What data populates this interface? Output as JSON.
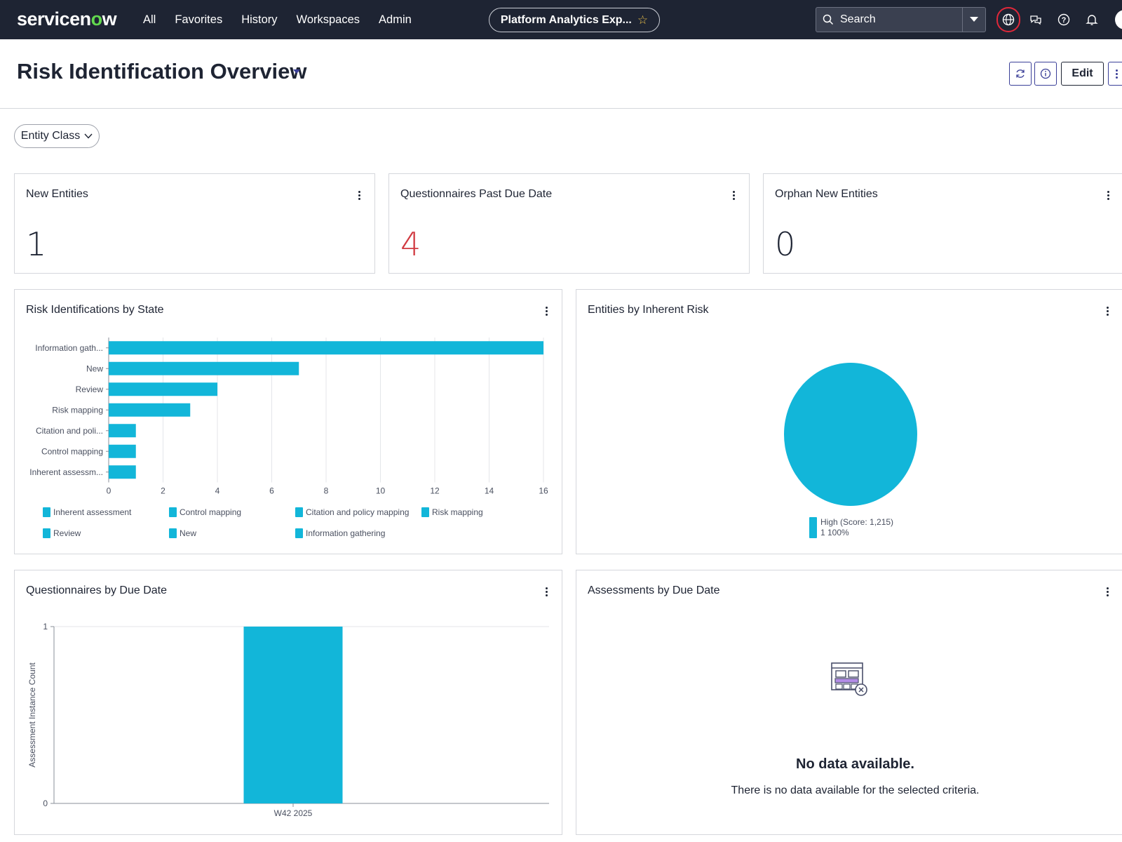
{
  "nav": {
    "logo": "servicenow",
    "links": [
      "All",
      "Favorites",
      "History",
      "Workspaces",
      "Admin"
    ],
    "pill_label": "Platform Analytics Exp...",
    "search_label": "Search"
  },
  "header": {
    "title": "Risk Identification Overview",
    "edit_label": "Edit"
  },
  "filter": {
    "label": "Entity Class"
  },
  "kpis": [
    {
      "title": "New Entities",
      "value": "1",
      "color": "#1e2433"
    },
    {
      "title": "Questionnaires Past Due Date",
      "value": "4",
      "color": "#d13a41"
    },
    {
      "title": "Orphan New Entities",
      "value": "0",
      "color": "#1e2433"
    }
  ],
  "widgets": {
    "risk_by_state": {
      "title": "Risk Identifications by State"
    },
    "inherent_risk": {
      "title": "Entities by Inherent Risk",
      "legend_label": "High (Score: 1,215)",
      "legend_value": "1  100%"
    },
    "questionnaires_due": {
      "title": "Questionnaires by Due Date"
    },
    "assessments_due": {
      "title": "Assessments by Due Date",
      "nodata_title": "No data available.",
      "nodata_msg": "There is no data available for the selected criteria."
    }
  },
  "chart_data": [
    {
      "type": "bar",
      "orientation": "horizontal",
      "title": "Risk Identifications by State",
      "categories": [
        "Information gath...",
        "New",
        "Review",
        "Risk mapping",
        "Citation and poli...",
        "Control mapping",
        "Inherent assessm..."
      ],
      "values": [
        16,
        7,
        4,
        3,
        1,
        1,
        1
      ],
      "xlim": [
        0,
        16
      ],
      "ticks": [
        0,
        2,
        4,
        6,
        8,
        10,
        12,
        14,
        16
      ],
      "grid": true,
      "color": "#12b6d9",
      "legend": [
        "Inherent assessment",
        "Control mapping",
        "Citation and policy mapping",
        "Risk mapping",
        "Review",
        "New",
        "Information gathering"
      ],
      "legend_position": "bottom"
    },
    {
      "type": "pie",
      "title": "Entities by Inherent Risk",
      "categories": [
        "High (Score: 1,215)"
      ],
      "values": [
        1
      ],
      "percent": [
        100
      ],
      "color": "#12b6d9",
      "legend_position": "bottom"
    },
    {
      "type": "bar",
      "title": "Questionnaires by Due Date",
      "categories": [
        "W42 2025"
      ],
      "values": [
        1
      ],
      "ylabel": "Assessment Instance Count",
      "ylim": [
        0,
        1
      ],
      "ticks": [
        0,
        1
      ],
      "color": "#12b6d9"
    }
  ]
}
